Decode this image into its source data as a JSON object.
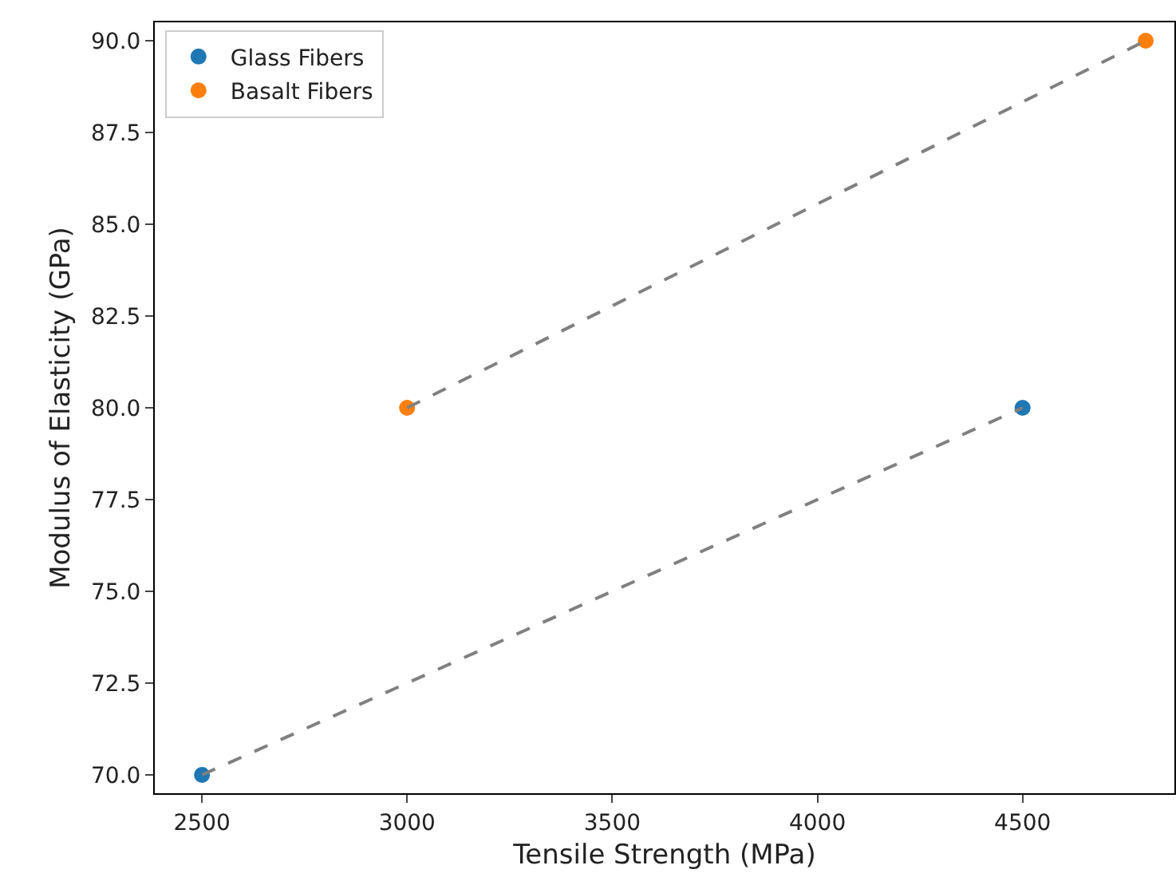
{
  "chart_data": {
    "type": "scatter",
    "xlabel": "Tensile Strength (MPa)",
    "ylabel": "Modulus of Elasticity (GPa)",
    "xlim": [
      2385,
      4870
    ],
    "xticks": [
      2500,
      3000,
      3500,
      4000,
      4500
    ],
    "ylim": [
      69.5,
      90.5
    ],
    "yticks": [
      {
        "value": 70,
        "label": "70.0"
      },
      {
        "value": 72.5,
        "label": "72.5"
      },
      {
        "value": 75,
        "label": "75.0"
      },
      {
        "value": 77.5,
        "label": "77.5"
      },
      {
        "value": 80,
        "label": "80.0"
      },
      {
        "value": 82.5,
        "label": "82.5"
      },
      {
        "value": 85,
        "label": "85.0"
      },
      {
        "value": 87.5,
        "label": "87.5"
      },
      {
        "value": 90,
        "label": "90.0"
      }
    ],
    "grid": false,
    "legend": "top left",
    "marker": "circle",
    "series": [
      {
        "name": "Glass Fibers",
        "color": "#1f77b4",
        "x": [
          2500,
          4500
        ],
        "values": [
          70,
          80
        ]
      },
      {
        "name": "Basalt Fibers",
        "color": "#ff7f0e",
        "x": [
          3000,
          4800
        ],
        "values": [
          80,
          90
        ]
      },
      {
        "type": "line",
        "color": "#808080",
        "line_style": "dashed",
        "marker": "none",
        "x": [
          2500,
          4500
        ],
        "values": [
          70,
          80
        ]
      },
      {
        "type": "line",
        "color": "#808080",
        "line_style": "dashed",
        "marker": "none",
        "x": [
          3000,
          4800
        ],
        "values": [
          80,
          90
        ]
      }
    ]
  }
}
